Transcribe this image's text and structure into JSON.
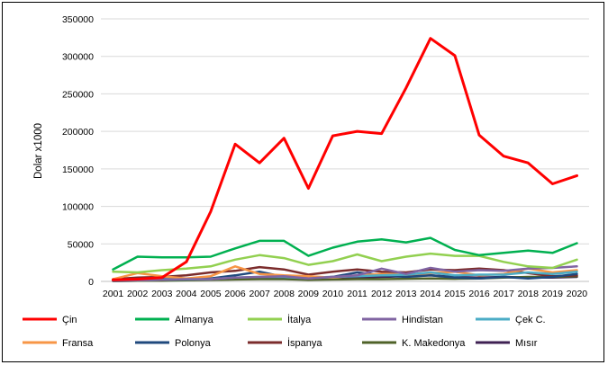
{
  "chart_data": {
    "type": "line",
    "title": "",
    "xlabel": "",
    "ylabel": "Dolar x1000",
    "ylim": [
      0,
      350000
    ],
    "yticks": [
      0,
      50000,
      100000,
      150000,
      200000,
      250000,
      300000,
      350000
    ],
    "ytick_labels": [
      "0",
      "50000",
      "100000",
      "150000",
      "200000",
      "250000",
      "300000",
      "350000"
    ],
    "grid": true,
    "legend_position": "bottom",
    "categories": [
      "2001",
      "2002",
      "2003",
      "2004",
      "2005",
      "2006",
      "2007",
      "2008",
      "2009",
      "2010",
      "2011",
      "2012",
      "2013",
      "2014",
      "2015",
      "2016",
      "2017",
      "2018",
      "2019",
      "2020"
    ],
    "series": [
      {
        "name": "Çin",
        "color": "#ff0000",
        "width": 3,
        "values": [
          2000,
          3000,
          5000,
          26000,
          93000,
          183000,
          158000,
          191000,
          124000,
          194000,
          200000,
          197000,
          258000,
          324000,
          301000,
          195000,
          167000,
          158000,
          130000,
          141000
        ]
      },
      {
        "name": "Almanya",
        "color": "#00b050",
        "width": 2.5,
        "values": [
          16000,
          33000,
          32000,
          32000,
          33000,
          44000,
          54000,
          54000,
          34000,
          45000,
          53000,
          56000,
          52000,
          58000,
          42000,
          35000,
          38000,
          41000,
          38000,
          51000
        ]
      },
      {
        "name": "İtalya",
        "color": "#92d050",
        "width": 2.5,
        "values": [
          13000,
          12000,
          15000,
          17000,
          20000,
          29000,
          35000,
          31000,
          22000,
          27000,
          36000,
          27000,
          33000,
          37000,
          34000,
          34000,
          26000,
          20000,
          18000,
          29000
        ]
      },
      {
        "name": "Hindistan",
        "color": "#8064a2",
        "width": 2.5,
        "values": [
          1000,
          1500,
          2000,
          3000,
          3000,
          5000,
          6000,
          7000,
          4000,
          6000,
          8000,
          17000,
          10000,
          18000,
          13000,
          15000,
          14000,
          17000,
          18000,
          20000
        ]
      },
      {
        "name": "Çek C.",
        "color": "#4bacc6",
        "width": 2.5,
        "values": [
          1000,
          1500,
          2000,
          2500,
          3000,
          5000,
          6000,
          6000,
          4000,
          6000,
          7000,
          8000,
          9000,
          12000,
          8000,
          9000,
          9000,
          12000,
          10000,
          13000
        ]
      },
      {
        "name": "Fransa",
        "color": "#f79646",
        "width": 2.5,
        "values": [
          3000,
          11000,
          7000,
          4000,
          7000,
          20000,
          10000,
          8000,
          7000,
          5000,
          8000,
          10000,
          9000,
          11000,
          13000,
          8000,
          10000,
          17000,
          12000,
          15000
        ]
      },
      {
        "name": "Polonya",
        "color": "#1f497d",
        "width": 2.5,
        "values": [
          1000,
          2000,
          3000,
          3000,
          4000,
          8000,
          13000,
          6000,
          5000,
          6000,
          12000,
          8000,
          6000,
          8000,
          5000,
          4000,
          6000,
          4000,
          6000,
          10000
        ]
      },
      {
        "name": "İspanya",
        "color": "#7b2c2c",
        "width": 2.5,
        "values": [
          3000,
          5000,
          6000,
          8000,
          12000,
          14000,
          19000,
          16000,
          9000,
          13000,
          16000,
          13000,
          12000,
          16000,
          15000,
          17000,
          15000,
          11000,
          7000,
          8000
        ]
      },
      {
        "name": "K. Makedonya",
        "color": "#4f6228",
        "width": 2.5,
        "values": [
          500,
          800,
          1000,
          1500,
          2000,
          2500,
          3000,
          3000,
          2000,
          2500,
          3000,
          3000,
          3500,
          4000,
          3500,
          4000,
          5000,
          6000,
          6000,
          7000
        ]
      },
      {
        "name": "Mısır",
        "color": "#3f2153",
        "width": 2.5,
        "values": [
          500,
          1000,
          1500,
          2000,
          3000,
          4000,
          5000,
          5000,
          4000,
          6000,
          5000,
          6000,
          7000,
          8000,
          6000,
          5000,
          6000,
          5000,
          5000,
          6000
        ]
      }
    ]
  }
}
